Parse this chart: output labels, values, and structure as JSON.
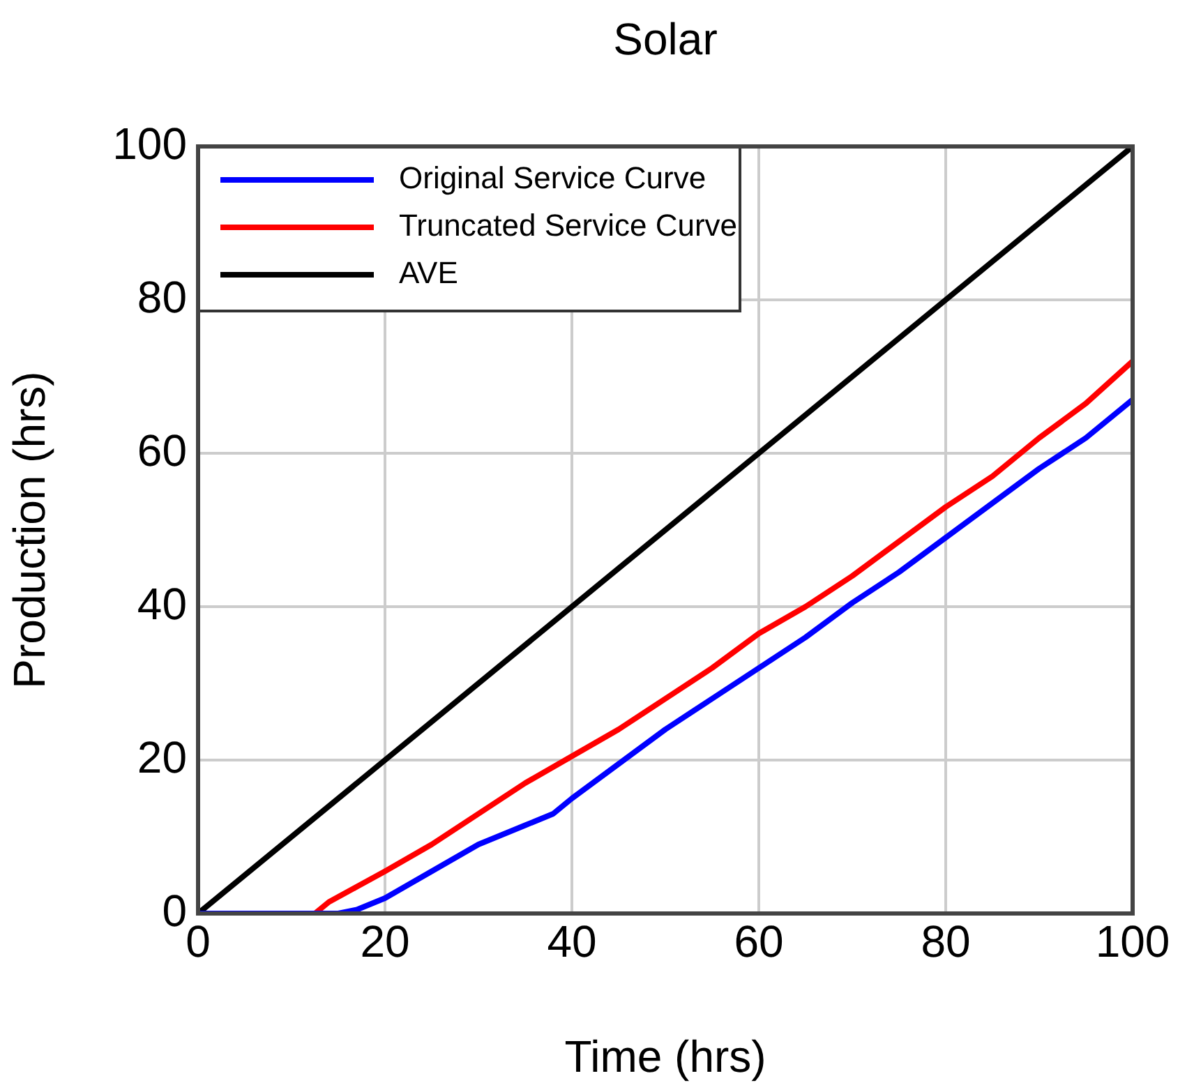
{
  "chart_data": {
    "type": "line",
    "title": "Solar",
    "xlabel": "Time (hrs)",
    "ylabel": "Production (hrs)",
    "xlim": [
      0,
      100
    ],
    "ylim": [
      0,
      100
    ],
    "xticks": [
      0,
      20,
      40,
      60,
      80,
      100
    ],
    "yticks": [
      0,
      20,
      40,
      60,
      80,
      100
    ],
    "grid": true,
    "legend": "top left",
    "line_style": "solid",
    "marker": "none",
    "series": [
      {
        "name": "Original Service Curve",
        "color": "#0000ff",
        "x": [
          0,
          15,
          17,
          20,
          25,
          30,
          35,
          38,
          40,
          45,
          50,
          55,
          60,
          65,
          70,
          75,
          80,
          85,
          90,
          95,
          100
        ],
        "values": [
          0,
          0,
          0.5,
          2,
          5.5,
          9,
          11.5,
          13,
          15,
          19.5,
          24,
          28,
          32,
          36,
          40.5,
          44.5,
          49,
          53.5,
          58,
          62,
          67
        ]
      },
      {
        "name": "Truncated Service Curve",
        "color": "#ff0000",
        "x": [
          0,
          12.5,
          14,
          17,
          20,
          25,
          30,
          35,
          40,
          45,
          50,
          55,
          60,
          65,
          70,
          75,
          80,
          85,
          90,
          95,
          100
        ],
        "values": [
          0,
          0,
          1.5,
          3.5,
          5.5,
          9,
          13,
          17,
          20.5,
          24,
          28,
          32,
          36.5,
          40,
          44,
          48.5,
          53,
          57,
          62,
          66.5,
          72
        ]
      },
      {
        "name": "AVE",
        "color": "#000000",
        "x": [
          0,
          100
        ],
        "values": [
          0,
          100
        ]
      }
    ]
  }
}
